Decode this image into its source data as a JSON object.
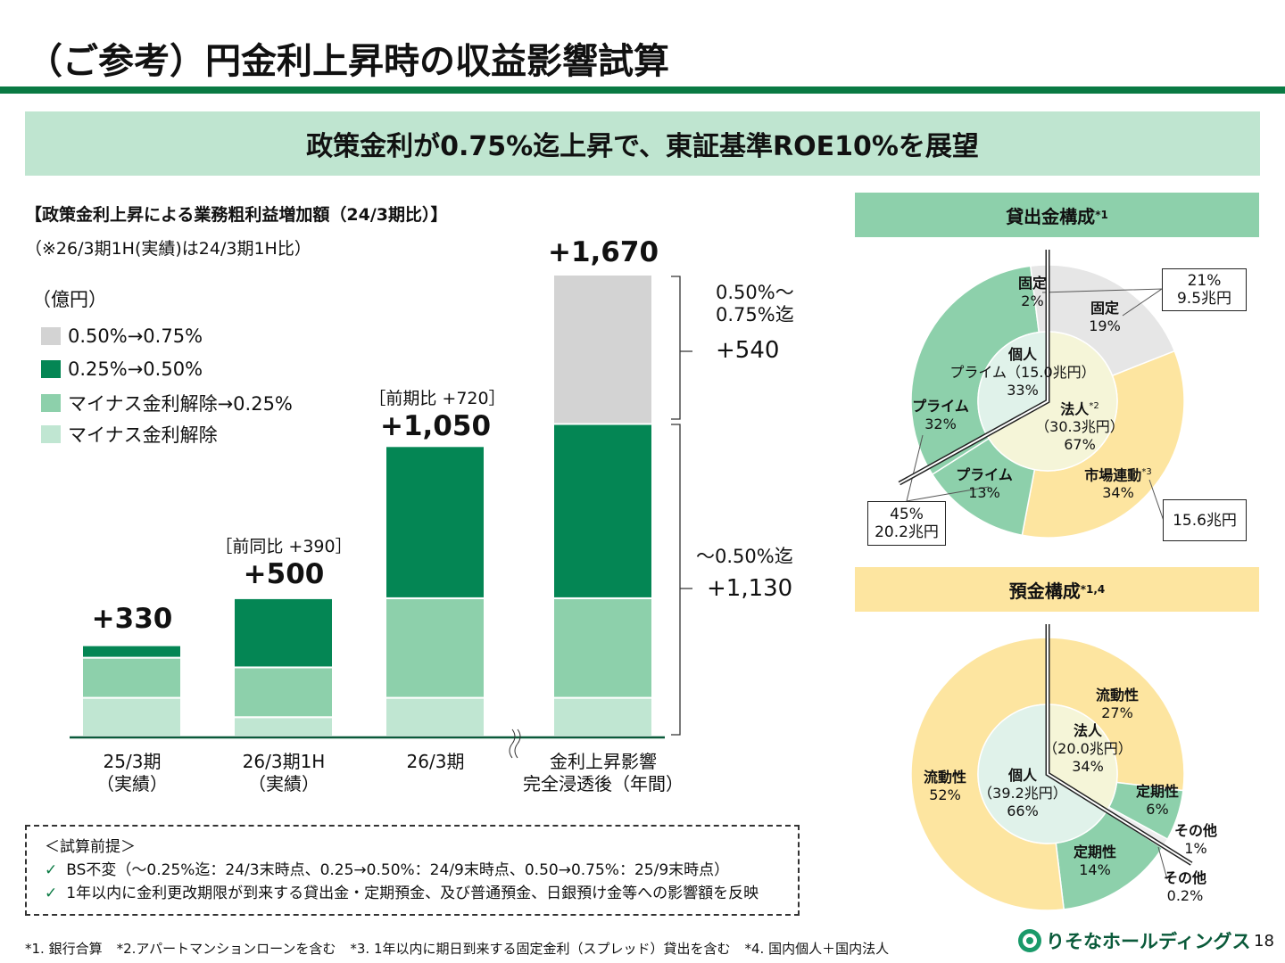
{
  "header": {
    "title": "（ご参考）円金利上昇時の収益影響試算",
    "banner": "政策金利が0.75%迄上昇で、東証基準ROE10%を展望"
  },
  "left": {
    "heading": "【政策金利上昇による業務粗利益増加額（24/3期比）】",
    "note": "（※26/3期1H(実績)は24/3期1H比）",
    "unit": "（億円）"
  },
  "colors": {
    "brand": "#0a7a43",
    "banner": "#bfe5d0",
    "loan_header": "#8dd0ab",
    "deposit_header": "#fde5a0"
  },
  "chart_data": [
    {
      "type": "bar",
      "stacked": true,
      "unit": "（億円）",
      "categories": [
        "25/3期\n（実績）",
        "26/3期1H\n（実績）",
        "26/3期",
        "金利上昇影響\n完全浸透後（年間）"
      ],
      "series": [
        {
          "name": "マイナス金利解除",
          "color": "#c0e6d2",
          "values": [
            140,
            70,
            140,
            140
          ]
        },
        {
          "name": "マイナス金利解除→0.25%",
          "color": "#8dd0ab",
          "values": [
            145,
            180,
            360,
            360
          ]
        },
        {
          "name": "0.25%→0.50%",
          "color": "#048654",
          "values": [
            45,
            250,
            550,
            630
          ]
        },
        {
          "name": "0.50%→0.75%",
          "color": "#d3d3d3",
          "values": [
            0,
            0,
            0,
            540
          ]
        }
      ],
      "totals": [
        "+330",
        "+500",
        "+1,050",
        "+1,670"
      ],
      "comparisons": [
        "",
        "［前同比 +390］",
        "［前期比 +720］",
        ""
      ],
      "brackets": [
        {
          "label": "0.50%～\n0.75%迄",
          "value": "+540"
        },
        {
          "label": "～0.50%迄",
          "value": "+1,130"
        }
      ],
      "axis_break_between": [
        "26/3期",
        "金利上昇影響完全浸透後（年間）"
      ]
    },
    {
      "type": "pie",
      "title": "貸出金構成",
      "title_note": "*1",
      "inner": [
        {
          "label": "法人",
          "note": "*2",
          "amount": "（30.3兆円）",
          "value": 67,
          "color": "#f5f5d8"
        },
        {
          "label": "個人",
          "amount": "プライム（15.0兆円）",
          "value": 33,
          "color": "#e0f2ea"
        }
      ],
      "outer": [
        {
          "label": "固定",
          "value": 19,
          "color": "#e6e6e6"
        },
        {
          "label": "市場連動",
          "note": "*3",
          "value": 34,
          "color": "#fde5a0"
        },
        {
          "label": "プライム",
          "value": 13,
          "color": "#8dd0ab"
        },
        {
          "label": "プライム",
          "value": 32,
          "color": "#8dd0ab"
        },
        {
          "label": "固定",
          "value": 2,
          "color": "#e6e6e6"
        }
      ],
      "callouts": [
        "21%",
        "9.5兆円",
        "45%",
        "20.2兆円",
        "15.6兆円"
      ]
    },
    {
      "type": "pie",
      "title": "預金構成",
      "title_note": "*1,4",
      "inner": [
        {
          "label": "法人",
          "amount": "（20.0兆円）",
          "value": 34,
          "color": "#f5f5d8"
        },
        {
          "label": "個人",
          "amount": "（39.2兆円）",
          "value": 66,
          "color": "#e0f2ea"
        }
      ],
      "outer": [
        {
          "label": "流動性",
          "value": 27,
          "color": "#fde5a0"
        },
        {
          "label": "定期性",
          "value": 6,
          "color": "#8dd0ab"
        },
        {
          "label": "その他",
          "value": 1,
          "color": "#eeeeee"
        },
        {
          "label": "その他",
          "value": 0.2,
          "color": "#eeeeee"
        },
        {
          "label": "定期性",
          "value": 14,
          "color": "#8dd0ab"
        },
        {
          "label": "流動性",
          "value": 52,
          "color": "#fde5a0"
        }
      ]
    }
  ],
  "notes": {
    "title": "＜試算前提＞",
    "items": [
      "BS不変（～0.25%迄：24/3末時点、0.25→0.50%：24/9末時点、0.50→0.75%：25/9末時点）",
      "1年以内に金利更改期限が到来する貸出金・定期預金、及び普通預金、日銀預け金等への影響額を反映"
    ]
  },
  "footnotes": [
    "*1. 銀行合算",
    "*2.アパートマンションローンを含む",
    "*3. 1年以内に期日到来する固定金利（スプレッド）貸出を含む",
    "*4. 国内個人＋国内法人"
  ],
  "footer": {
    "logo": "りそなホールディングス",
    "page": "18"
  }
}
